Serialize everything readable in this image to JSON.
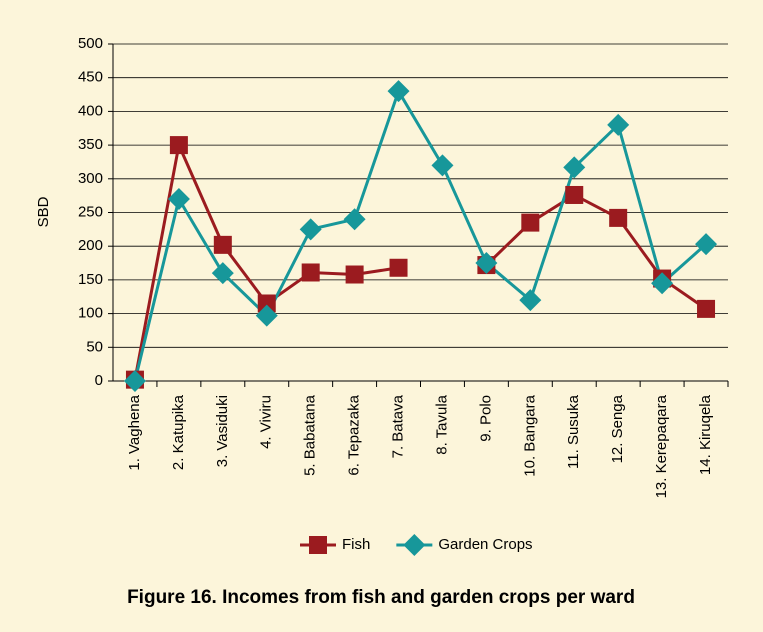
{
  "chart_data": {
    "type": "line",
    "title": "Figure 16. Incomes from fish and garden crops per ward",
    "y_label": "SBD",
    "categories": [
      "1. Vaghena",
      "2. Katupika",
      "3. Vasiduki",
      "4. Viviru",
      "5. Babatana",
      "6. Tepazaka",
      "7. Batava",
      "8. Tavula",
      "9. Polo",
      "10. Bangara",
      "11. Susuka",
      "12. Senga",
      "13. Kerepaqara",
      "14. Kiruqela"
    ],
    "series": [
      {
        "name": "Fish",
        "color": "#9b1b1f",
        "marker": "square",
        "values": [
          2,
          350,
          202,
          115,
          161,
          158,
          168,
          null,
          172,
          235,
          276,
          242,
          152,
          107
        ]
      },
      {
        "name": "Garden Crops",
        "color": "#17979a",
        "marker": "diamond",
        "values": [
          0,
          270,
          160,
          97,
          225,
          240,
          430,
          320,
          175,
          120,
          317,
          380,
          145,
          203
        ]
      }
    ],
    "ylim": [
      0,
      500
    ],
    "yticks": [
      0,
      50,
      100,
      150,
      200,
      250,
      300,
      350,
      400,
      450,
      500
    ],
    "grid": true,
    "legend": "bottom"
  }
}
